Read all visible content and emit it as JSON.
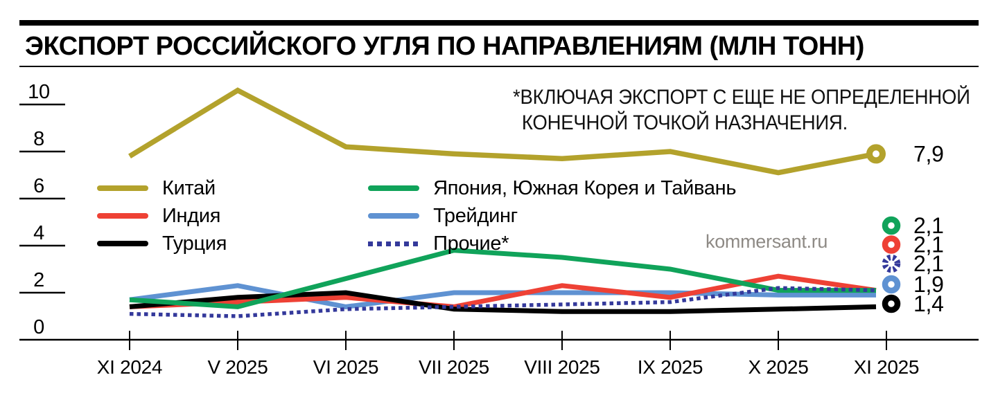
{
  "title": "ЭКСПОРТ РОССИЙСКОГО УГЛЯ ПО НАПРАВЛЕНИЯМ (МЛН ТОНН)",
  "annotation": {
    "line1": "*ВКЛЮЧАЯ ЭКСПОРТ С ЕЩЕ НЕ ОПРЕДЕЛЕННОЙ",
    "line2": "КОНЕЧНОЙ ТОЧКОЙ НАЗНАЧЕНИЯ."
  },
  "watermark": "kommersant.ru",
  "chart_data": {
    "type": "line",
    "title": "Экспорт российского угля по направлениям (млн тонн)",
    "categories": [
      "XI 2024",
      "V 2025",
      "VI 2025",
      "VII 2025",
      "VIII 2025",
      "IX 2025",
      "X 2025",
      "XI 2025"
    ],
    "ylim": [
      0,
      10
    ],
    "yticks": [
      10,
      8,
      6,
      4,
      2,
      0
    ],
    "grid": "tick-underlines-on-y",
    "legend_position": "inside-left",
    "series": [
      {
        "key": "china",
        "name": "Китай",
        "color": "#b3a22c",
        "style": "solid",
        "values": [
          7.8,
          10.6,
          8.2,
          7.9,
          7.7,
          8.0,
          7.1,
          7.9
        ],
        "end_label": "7,9"
      },
      {
        "key": "india",
        "name": "Индия",
        "color": "#ee4135",
        "style": "solid",
        "values": [
          1.4,
          1.6,
          1.8,
          1.4,
          2.3,
          1.8,
          2.7,
          2.1
        ],
        "end_label": "2,1"
      },
      {
        "key": "turkey",
        "name": "Турция",
        "color": "#000000",
        "style": "solid",
        "values": [
          1.4,
          1.8,
          2.0,
          1.3,
          1.2,
          1.2,
          1.3,
          1.4
        ],
        "end_label": "1,4"
      },
      {
        "key": "japan-korea-taiwan",
        "name": "Япония, Южная Корея и Тайвань",
        "color": "#10a35a",
        "style": "solid",
        "values": [
          1.7,
          1.4,
          2.6,
          3.8,
          3.5,
          3.0,
          2.1,
          2.1
        ],
        "end_label": "2,1"
      },
      {
        "key": "trading",
        "name": "Трейдинг",
        "color": "#5f92d2",
        "style": "solid",
        "values": [
          1.7,
          2.3,
          1.4,
          2.0,
          2.0,
          2.0,
          1.9,
          1.9
        ],
        "end_label": "1,9"
      },
      {
        "key": "others",
        "name": "Прочие*",
        "color": "#34399b",
        "style": "dotted",
        "values": [
          1.1,
          1.0,
          1.3,
          1.4,
          1.5,
          1.6,
          2.2,
          2.1
        ],
        "end_label": "2,1"
      }
    ]
  }
}
